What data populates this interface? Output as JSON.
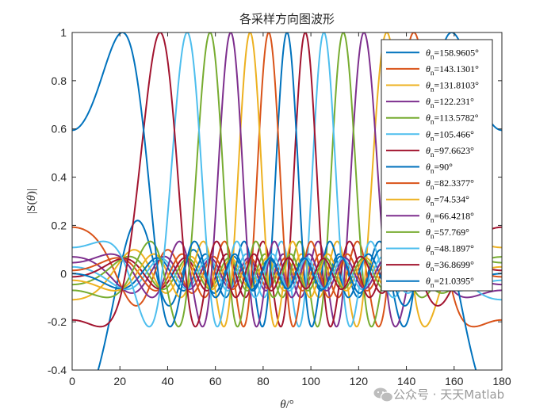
{
  "chart_data": {
    "type": "line",
    "title": "各采样方向图波形",
    "xlabel_symbol": "θ",
    "xlabel_unit": "/°",
    "ylabel_prefix": "|S(",
    "ylabel_symbol": "θ",
    "ylabel_suffix": ")|",
    "xlim": [
      0,
      180
    ],
    "ylim": [
      -0.4,
      1
    ],
    "xticks": [
      "0",
      "20",
      "40",
      "60",
      "80",
      "100",
      "120",
      "140",
      "160",
      "180"
    ],
    "yticks": [
      "-0.4",
      "-0.2",
      "0",
      "0.2",
      "0.4",
      "0.6",
      "0.8",
      "1"
    ],
    "legend_position": "top-right",
    "legend_prefix": "θ",
    "legend_subscript": "n",
    "grid": false,
    "series": [
      {
        "name": "=158.9605°",
        "center": 158.9605,
        "color": "#0072BD"
      },
      {
        "name": "=143.1301°",
        "center": 143.1301,
        "color": "#D95319"
      },
      {
        "name": "=131.8103°",
        "center": 131.8103,
        "color": "#EDB120"
      },
      {
        "name": "=122.231°",
        "center": 122.231,
        "color": "#7E2F8E"
      },
      {
        "name": "=113.5782°",
        "center": 113.5782,
        "color": "#77AC30"
      },
      {
        "name": "=105.466°",
        "center": 105.466,
        "color": "#4DBEEE"
      },
      {
        "name": "=97.6623°",
        "center": 97.6623,
        "color": "#A2142F"
      },
      {
        "name": "=90°",
        "center": 90,
        "color": "#0072BD"
      },
      {
        "name": "=82.3377°",
        "center": 82.3377,
        "color": "#D95319"
      },
      {
        "name": "=74.534°",
        "center": 74.534,
        "color": "#EDB120"
      },
      {
        "name": "=66.4218°",
        "center": 66.4218,
        "color": "#7E2F8E"
      },
      {
        "name": "=57.769°",
        "center": 57.769,
        "color": "#77AC30"
      },
      {
        "name": "=48.1897°",
        "center": 48.1897,
        "color": "#4DBEEE"
      },
      {
        "name": "=36.8699°",
        "center": 36.8699,
        "color": "#A2142F"
      },
      {
        "name": "=21.0395°",
        "center": 21.0395,
        "color": "#0072BD"
      }
    ]
  },
  "watermark": {
    "icon": "wechat-icon",
    "text": "公众号 · 天天Matlab"
  }
}
